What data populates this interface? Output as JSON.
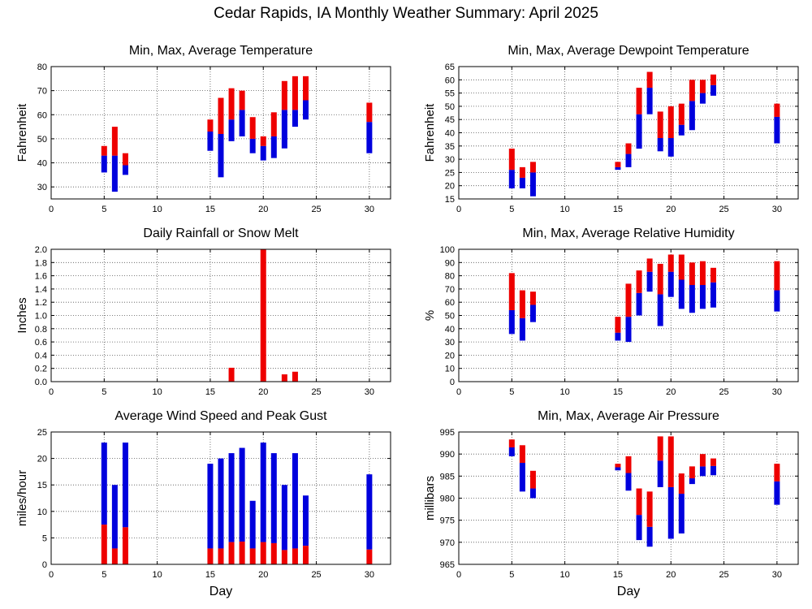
{
  "title": "Cedar Rapids, IA Monthly Weather Summary: April 2025",
  "colors": {
    "red": "#ee0000",
    "blue": "#0000dd"
  },
  "chart_data": [
    {
      "id": "temperature",
      "type": "bar",
      "title": "Min, Max, Average Temperature",
      "ylabel": "Fahrenheit",
      "xlabel": "",
      "xlim": [
        0,
        32
      ],
      "ylim": [
        25,
        80
      ],
      "xticks": [
        0,
        5,
        10,
        15,
        20,
        25,
        30
      ],
      "yticks": [
        30,
        40,
        50,
        60,
        70,
        80
      ],
      "grid": true,
      "series": [
        {
          "name": "",
          "color": "red",
          "stack": "min-avg-max",
          "points": [
            {
              "x": 5,
              "min": 36,
              "avg": 43,
              "max": 47
            },
            {
              "x": 6,
              "min": 28,
              "avg": 43,
              "max": 55
            },
            {
              "x": 7,
              "min": 35,
              "avg": 39,
              "max": 44
            },
            {
              "x": 15,
              "min": 45,
              "avg": 53,
              "max": 58
            },
            {
              "x": 16,
              "min": 34,
              "avg": 52,
              "max": 67
            },
            {
              "x": 17,
              "min": 49,
              "avg": 58,
              "max": 71
            },
            {
              "x": 18,
              "min": 51,
              "avg": 62,
              "max": 70
            },
            {
              "x": 19,
              "min": 44,
              "avg": 50,
              "max": 59
            },
            {
              "x": 20,
              "min": 41,
              "avg": 47,
              "max": 51
            },
            {
              "x": 21,
              "min": 42,
              "avg": 51,
              "max": 61
            },
            {
              "x": 22,
              "min": 46,
              "avg": 62,
              "max": 74
            },
            {
              "x": 23,
              "min": 55,
              "avg": 62,
              "max": 76
            },
            {
              "x": 24,
              "min": 58,
              "avg": 66,
              "max": 76
            },
            {
              "x": 30,
              "min": 44,
              "avg": 57,
              "max": 65
            }
          ]
        }
      ]
    },
    {
      "id": "dewpoint",
      "type": "bar",
      "title": "Min, Max, Average Dewpoint Temperature",
      "ylabel": "Fahrenheit",
      "xlabel": "",
      "xlim": [
        0,
        32
      ],
      "ylim": [
        15,
        65
      ],
      "xticks": [
        0,
        5,
        10,
        15,
        20,
        25,
        30
      ],
      "yticks": [
        15,
        20,
        25,
        30,
        35,
        40,
        45,
        50,
        55,
        60,
        65
      ],
      "grid": true,
      "series": [
        {
          "name": "",
          "color": "red",
          "stack": "min-avg-max",
          "points": [
            {
              "x": 5,
              "min": 19,
              "avg": 26,
              "max": 34
            },
            {
              "x": 6,
              "min": 19,
              "avg": 23,
              "max": 27
            },
            {
              "x": 7,
              "min": 16,
              "avg": 25,
              "max": 29
            },
            {
              "x": 15,
              "min": 26,
              "avg": 27,
              "max": 29
            },
            {
              "x": 16,
              "min": 27,
              "avg": 32,
              "max": 36
            },
            {
              "x": 17,
              "min": 34,
              "avg": 47,
              "max": 57
            },
            {
              "x": 18,
              "min": 47,
              "avg": 57,
              "max": 63
            },
            {
              "x": 19,
              "min": 33,
              "avg": 38,
              "max": 48
            },
            {
              "x": 20,
              "min": 31,
              "avg": 38,
              "max": 50
            },
            {
              "x": 21,
              "min": 39,
              "avg": 43,
              "max": 51
            },
            {
              "x": 22,
              "min": 41,
              "avg": 52,
              "max": 60
            },
            {
              "x": 23,
              "min": 51,
              "avg": 55,
              "max": 60
            },
            {
              "x": 24,
              "min": 54,
              "avg": 58,
              "max": 62
            },
            {
              "x": 30,
              "min": 36,
              "avg": 46,
              "max": 51
            }
          ]
        }
      ]
    },
    {
      "id": "rainfall",
      "type": "bar",
      "title": "Daily Rainfall or Snow Melt",
      "ylabel": "Inches",
      "xlabel": "",
      "xlim": [
        0,
        32
      ],
      "ylim": [
        0,
        2.0
      ],
      "xticks": [
        0,
        5,
        10,
        15,
        20,
        25,
        30
      ],
      "yticks": [
        "0.0",
        "0.2",
        "0.4",
        "0.6",
        "0.8",
        "1.0",
        "1.2",
        "1.4",
        "1.6",
        "1.8",
        "2.0"
      ],
      "grid": true,
      "series": [
        {
          "name": "",
          "color": "red",
          "points": [
            {
              "x": 17,
              "value": 0.21
            },
            {
              "x": 20,
              "value": 2.0
            },
            {
              "x": 22,
              "value": 0.11
            },
            {
              "x": 23,
              "value": 0.15
            }
          ]
        }
      ]
    },
    {
      "id": "humidity",
      "type": "bar",
      "title": "Min, Max, Average Relative Humidity",
      "ylabel": "%",
      "xlabel": "",
      "xlim": [
        0,
        32
      ],
      "ylim": [
        0,
        100
      ],
      "xticks": [
        0,
        5,
        10,
        15,
        20,
        25,
        30
      ],
      "yticks": [
        0,
        10,
        20,
        30,
        40,
        50,
        60,
        70,
        80,
        90,
        100
      ],
      "grid": true,
      "series": [
        {
          "name": "",
          "color": "red",
          "stack": "min-avg-max",
          "points": [
            {
              "x": 5,
              "min": 36,
              "avg": 54,
              "max": 82
            },
            {
              "x": 6,
              "min": 31,
              "avg": 48,
              "max": 69
            },
            {
              "x": 7,
              "min": 45,
              "avg": 58,
              "max": 68
            },
            {
              "x": 15,
              "min": 31,
              "avg": 37,
              "max": 49
            },
            {
              "x": 16,
              "min": 30,
              "avg": 49,
              "max": 74
            },
            {
              "x": 17,
              "min": 50,
              "avg": 67,
              "max": 84
            },
            {
              "x": 18,
              "min": 68,
              "avg": 83,
              "max": 93
            },
            {
              "x": 19,
              "min": 42,
              "avg": 66,
              "max": 89
            },
            {
              "x": 20,
              "min": 64,
              "avg": 83,
              "max": 96
            },
            {
              "x": 21,
              "min": 55,
              "avg": 77,
              "max": 96
            },
            {
              "x": 22,
              "min": 52,
              "avg": 73,
              "max": 90
            },
            {
              "x": 23,
              "min": 55,
              "avg": 73,
              "max": 91
            },
            {
              "x": 24,
              "min": 56,
              "avg": 75,
              "max": 86
            },
            {
              "x": 30,
              "min": 53,
              "avg": 69,
              "max": 91
            }
          ]
        }
      ]
    },
    {
      "id": "wind",
      "type": "bar",
      "title": "Average Wind Speed and Peak Gust",
      "ylabel": "miles/hour",
      "xlabel": "Day",
      "xlim": [
        0,
        32
      ],
      "ylim": [
        0,
        25
      ],
      "xticks": [
        0,
        5,
        10,
        15,
        20,
        25,
        30
      ],
      "yticks": [
        0,
        5,
        10,
        15,
        20,
        25
      ],
      "grid": true,
      "series": [
        {
          "name": "",
          "color": "red",
          "stack": "avg-peak",
          "points": [
            {
              "x": 5,
              "avg": 7.5,
              "peak": 23
            },
            {
              "x": 6,
              "avg": 3,
              "peak": 15
            },
            {
              "x": 7,
              "avg": 7,
              "peak": 23
            },
            {
              "x": 15,
              "avg": 3,
              "peak": 19
            },
            {
              "x": 16,
              "avg": 3,
              "peak": 20
            },
            {
              "x": 17,
              "avg": 4.2,
              "peak": 21
            },
            {
              "x": 18,
              "avg": 4.3,
              "peak": 22
            },
            {
              "x": 19,
              "avg": 3,
              "peak": 12
            },
            {
              "x": 20,
              "avg": 4.2,
              "peak": 23
            },
            {
              "x": 21,
              "avg": 4,
              "peak": 21
            },
            {
              "x": 22,
              "avg": 2.7,
              "peak": 15
            },
            {
              "x": 23,
              "avg": 3,
              "peak": 21
            },
            {
              "x": 24,
              "avg": 3.5,
              "peak": 13
            },
            {
              "x": 30,
              "avg": 2.8,
              "peak": 17
            }
          ]
        }
      ]
    },
    {
      "id": "pressure",
      "type": "bar",
      "title": "Min, Max, Average Air Pressure",
      "ylabel": "millibars",
      "xlabel": "Day",
      "xlim": [
        0,
        32
      ],
      "ylim": [
        965,
        995
      ],
      "xticks": [
        0,
        5,
        10,
        15,
        20,
        25,
        30
      ],
      "yticks": [
        965,
        970,
        975,
        980,
        985,
        990,
        995
      ],
      "grid": true,
      "series": [
        {
          "name": "",
          "color": "red",
          "stack": "min-avg-max",
          "points": [
            {
              "x": 5,
              "min": 989.5,
              "avg": 991.5,
              "max": 993.3
            },
            {
              "x": 6,
              "min": 981.5,
              "avg": 988,
              "max": 992
            },
            {
              "x": 7,
              "min": 980,
              "avg": 982.2,
              "max": 986.2
            },
            {
              "x": 15,
              "min": 986.3,
              "avg": 987,
              "max": 987.8
            },
            {
              "x": 16,
              "min": 981.7,
              "avg": 985.7,
              "max": 989.5
            },
            {
              "x": 17,
              "min": 970.5,
              "avg": 976.2,
              "max": 982.2
            },
            {
              "x": 18,
              "min": 969,
              "avg": 973.5,
              "max": 981.5
            },
            {
              "x": 19,
              "min": 982.5,
              "avg": 988.5,
              "max": 994
            },
            {
              "x": 20,
              "min": 970.8,
              "avg": 982.5,
              "max": 994
            },
            {
              "x": 21,
              "min": 972,
              "avg": 981,
              "max": 985.6
            },
            {
              "x": 22,
              "min": 983.2,
              "avg": 984.5,
              "max": 987.2
            },
            {
              "x": 23,
              "min": 985,
              "avg": 987.2,
              "max": 990
            },
            {
              "x": 24,
              "min": 985.2,
              "avg": 987.3,
              "max": 989
            },
            {
              "x": 30,
              "min": 978.5,
              "avg": 983.8,
              "max": 987.8
            }
          ]
        }
      ]
    }
  ]
}
